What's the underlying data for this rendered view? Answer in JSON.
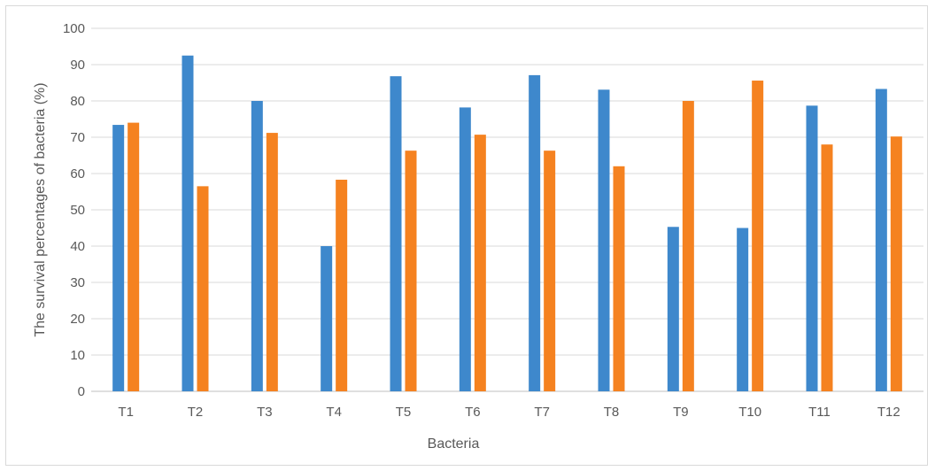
{
  "chart_data": {
    "type": "bar",
    "title": "",
    "xlabel": "Bacteria",
    "ylabel": "The survival percentages of bacteria (%)",
    "ylim": [
      0,
      100
    ],
    "yticks": [
      "0",
      "10",
      "20",
      "30",
      "40",
      "50",
      "60",
      "70",
      "80",
      "90",
      "100"
    ],
    "grid": true,
    "legend": "none",
    "categories": [
      "T1",
      "T2",
      "T3",
      "T4",
      "T5",
      "T6",
      "T7",
      "T8",
      "T9",
      "T10",
      "T11",
      "T12"
    ],
    "series": [
      {
        "color": "#3e88cc",
        "values": [
          73.4,
          92.5,
          80.0,
          40.0,
          86.8,
          78.2,
          87.1,
          83.1,
          45.3,
          45.0,
          78.7,
          83.3
        ]
      },
      {
        "color": "#f58220",
        "values": [
          74.0,
          56.5,
          71.2,
          58.3,
          66.3,
          70.7,
          66.3,
          62.0,
          80.0,
          85.6,
          68.0,
          70.2
        ]
      }
    ]
  }
}
